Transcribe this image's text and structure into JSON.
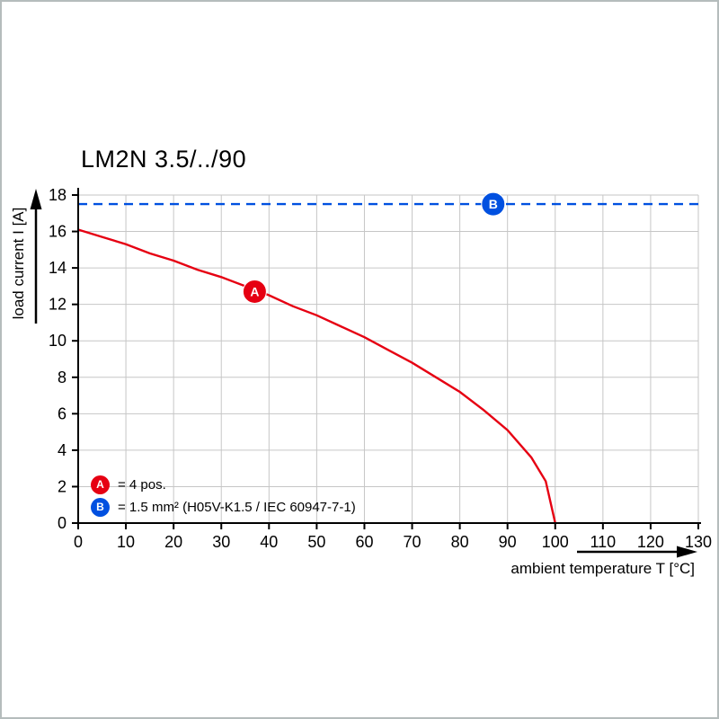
{
  "chart_data": {
    "type": "line",
    "title": "LM2N 3.5/../90",
    "xlabel": "ambient temperature T [°C]",
    "ylabel": "load current I [A]",
    "xlim": [
      0,
      130
    ],
    "ylim": [
      0,
      18
    ],
    "x_ticks": [
      0,
      10,
      20,
      30,
      40,
      50,
      60,
      70,
      80,
      90,
      100,
      110,
      120,
      130
    ],
    "y_ticks": [
      0,
      2,
      4,
      6,
      8,
      10,
      12,
      14,
      16,
      18
    ],
    "grid": true,
    "grid_color": "#c6c6c6",
    "axis_color": "#000000",
    "legend_position": "inside bottom-left",
    "series": [
      {
        "name": "A",
        "legend_label": "= 4 pos.",
        "color": "#e60012",
        "line_style": "solid",
        "marker_at": {
          "x": 37,
          "y": 12.7
        },
        "points": [
          [
            0,
            16.1
          ],
          [
            5,
            15.7
          ],
          [
            10,
            15.3
          ],
          [
            15,
            14.8
          ],
          [
            20,
            14.4
          ],
          [
            25,
            13.9
          ],
          [
            30,
            13.5
          ],
          [
            35,
            13.0
          ],
          [
            40,
            12.5
          ],
          [
            45,
            11.9
          ],
          [
            50,
            11.4
          ],
          [
            55,
            10.8
          ],
          [
            60,
            10.2
          ],
          [
            65,
            9.5
          ],
          [
            70,
            8.8
          ],
          [
            75,
            8.0
          ],
          [
            80,
            7.2
          ],
          [
            85,
            6.2
          ],
          [
            90,
            5.1
          ],
          [
            95,
            3.6
          ],
          [
            98,
            2.3
          ],
          [
            100,
            0
          ]
        ]
      },
      {
        "name": "B",
        "legend_label": "= 1.5 mm² (H05V-K1.5 / IEC 60947-7-1)",
        "color": "#0050e0",
        "line_style": "dashed",
        "marker_at": {
          "x": 87,
          "y": 17.5
        },
        "points": [
          [
            0,
            17.5
          ],
          [
            130,
            17.5
          ]
        ]
      }
    ]
  }
}
